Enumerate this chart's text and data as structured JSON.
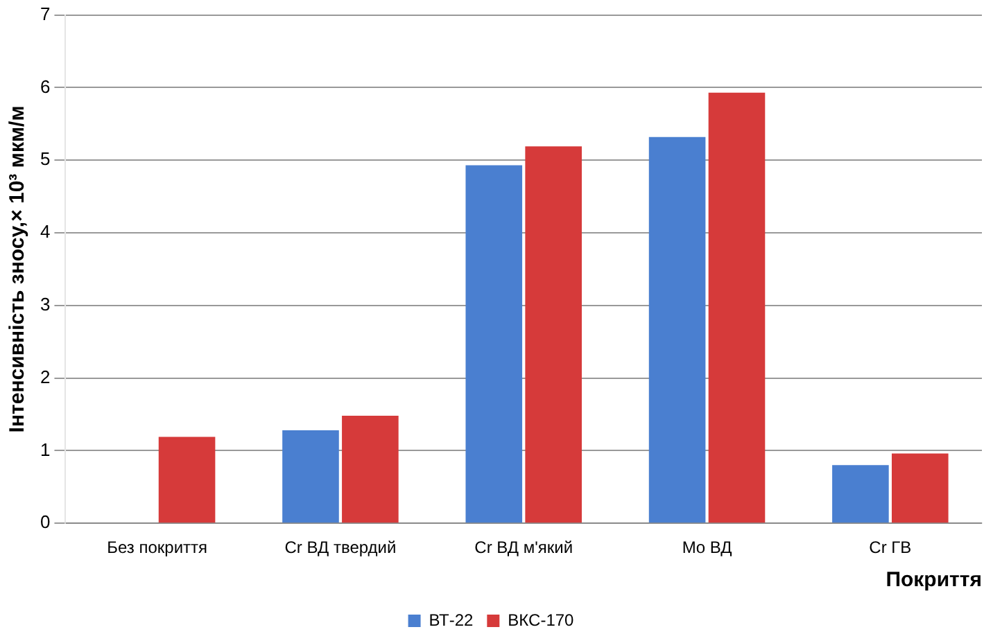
{
  "chart_data": {
    "type": "bar",
    "ylabel": "Інтенсивність зносу,× 10³ мкм/м",
    "xlabel": "Покриття",
    "categories": [
      "Без покриття",
      "Cr ВД твердий",
      "Cr ВД м'який",
      "Mo ВД",
      "Cr ГВ"
    ],
    "series": [
      {
        "name": "ВТ-22",
        "color": "#4a7fd0",
        "values": [
          null,
          1.28,
          4.93,
          5.32,
          0.8
        ]
      },
      {
        "name": "ВКС-170",
        "color": "#d63a3a",
        "values": [
          1.19,
          1.48,
          5.19,
          5.93,
          0.96
        ]
      }
    ],
    "ylim": [
      0,
      7
    ],
    "yticks": [
      0,
      1,
      2,
      3,
      4,
      5,
      6,
      7
    ],
    "grid": "y",
    "legend": "bottom"
  }
}
